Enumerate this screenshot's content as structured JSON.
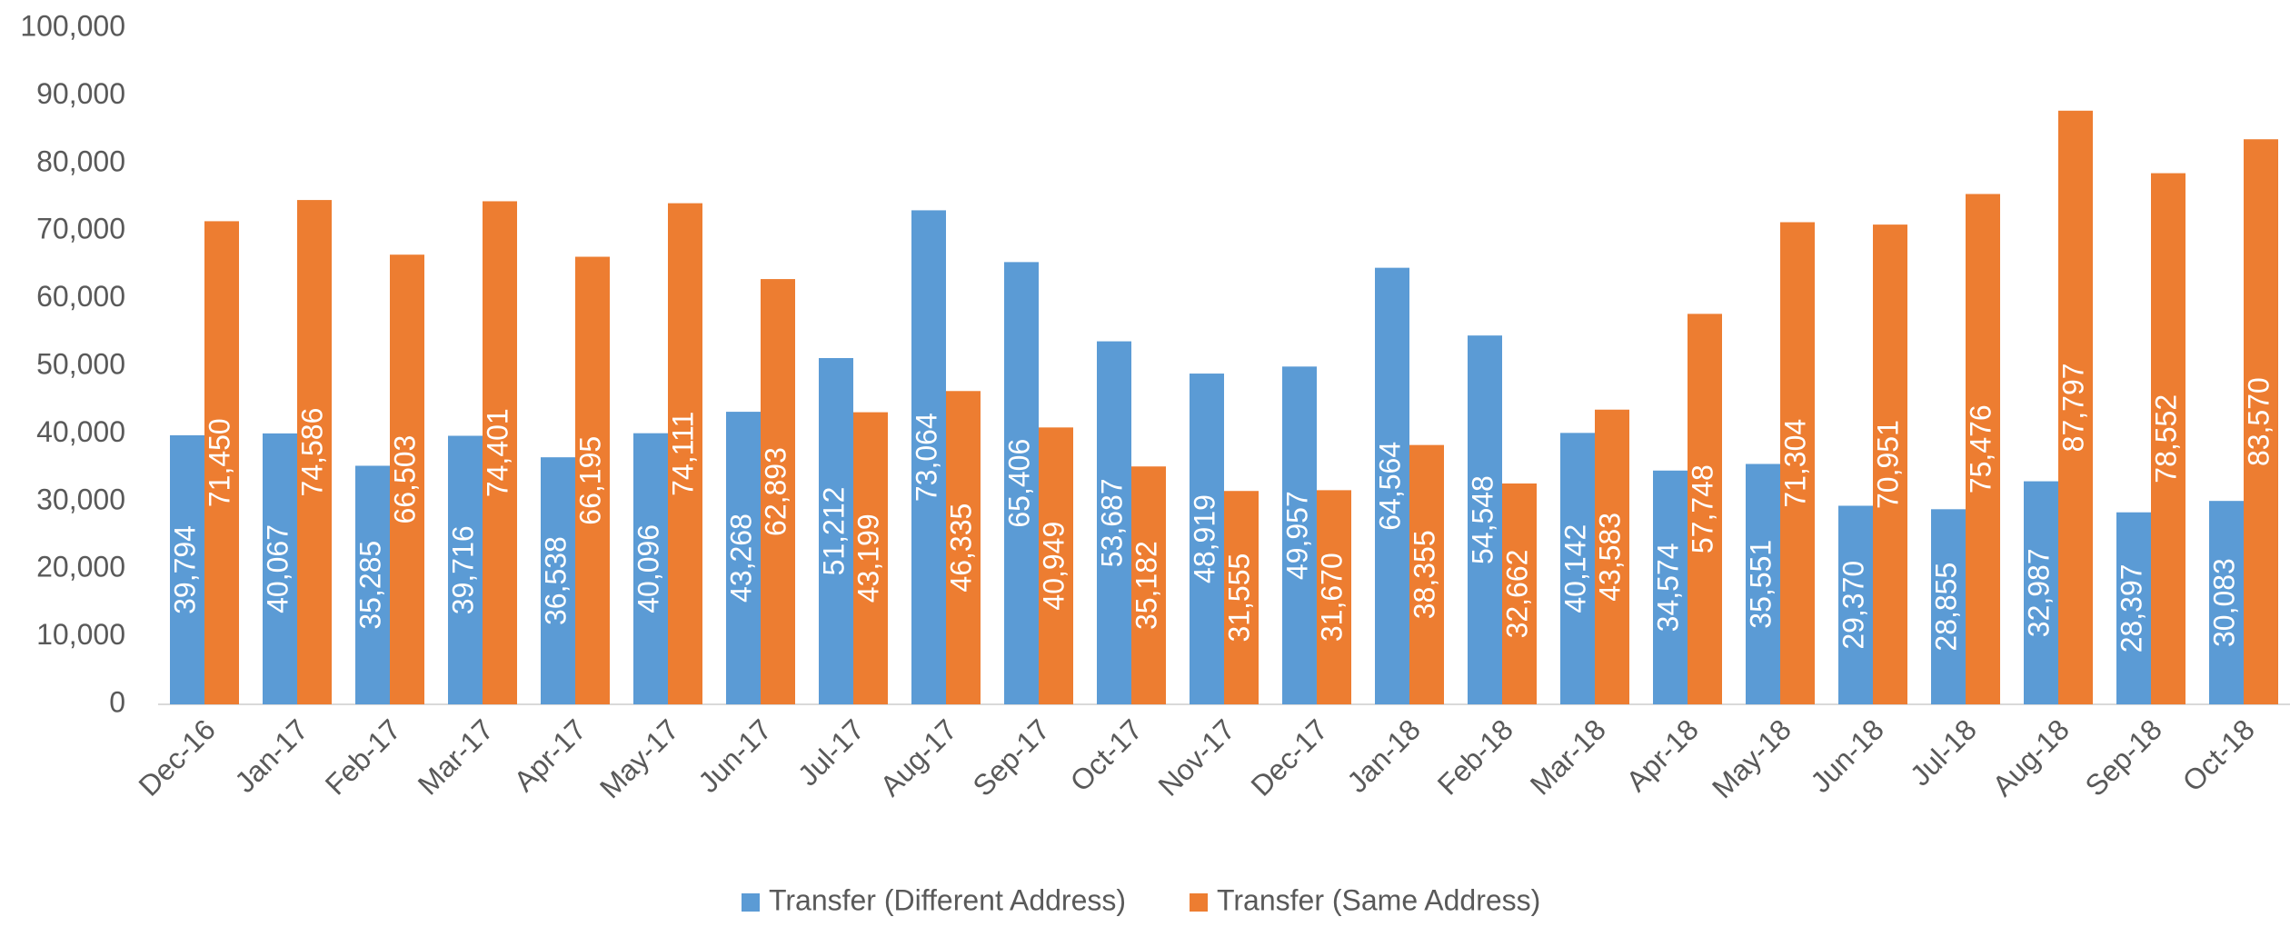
{
  "chart_data": {
    "type": "bar",
    "categories": [
      "Dec-16",
      "Jan-17",
      "Feb-17",
      "Mar-17",
      "Apr-17",
      "May-17",
      "Jun-17",
      "Jul-17",
      "Aug-17",
      "Sep-17",
      "Oct-17",
      "Nov-17",
      "Dec-17",
      "Jan-18",
      "Feb-18",
      "Mar-18",
      "Apr-18",
      "May-18",
      "Jun-18",
      "Jul-18",
      "Aug-18",
      "Sep-18",
      "Oct-18"
    ],
    "series": [
      {
        "name": "Transfer (Different Address)",
        "color": "#5b9bd5",
        "values": [
          39794,
          40067,
          35285,
          39716,
          36538,
          40096,
          43268,
          51212,
          73064,
          65406,
          53687,
          48919,
          49957,
          64564,
          54548,
          40142,
          34574,
          35551,
          29370,
          28855,
          32987,
          28397,
          30083
        ],
        "value_labels": [
          "39,794",
          "40,067",
          "35,285",
          "39,716",
          "36,538",
          "40,096",
          "43,268",
          "51,212",
          "73,064",
          "65,406",
          "53,687",
          "48,919",
          "49,957",
          "64,564",
          "54,548",
          "40,142",
          "34,574",
          "35,551",
          "29,370",
          "28,855",
          "32,987",
          "28,397",
          "30,083"
        ]
      },
      {
        "name": "Transfer (Same Address)",
        "color": "#ed7d31",
        "values": [
          71450,
          74586,
          66503,
          74401,
          66195,
          74111,
          62893,
          43199,
          46335,
          40949,
          35182,
          31555,
          31670,
          38355,
          32662,
          43583,
          57748,
          71304,
          70951,
          75476,
          87797,
          78552,
          83570
        ],
        "value_labels": [
          "71,450",
          "74,586",
          "66,503",
          "74,401",
          "66,195",
          "74,111",
          "62,893",
          "43,199",
          "46,335",
          "40,949",
          "35,182",
          "31,555",
          "31,670",
          "38,355",
          "32,662",
          "43,583",
          "57,748",
          "71,304",
          "70,951",
          "75,476",
          "87,797",
          "78,552",
          "83,570"
        ]
      }
    ],
    "ylim": [
      0,
      100000
    ],
    "yticks": [
      0,
      {
        "value": 10000,
        "label": "10,000"
      },
      {
        "value": 20000,
        "label": "20,000"
      },
      {
        "value": 30000,
        "label": "30,000"
      },
      {
        "value": 40000,
        "label": "40,000"
      },
      {
        "value": 50000,
        "label": "50,000"
      },
      {
        "value": 60000,
        "label": "60,000"
      },
      {
        "value": 70000,
        "label": "70,000"
      },
      {
        "value": 80000,
        "label": "80,000"
      },
      {
        "value": 90000,
        "label": "90,000"
      },
      {
        "value": 100000,
        "label": "100,000"
      }
    ],
    "grid": false,
    "legend": "bottom"
  }
}
